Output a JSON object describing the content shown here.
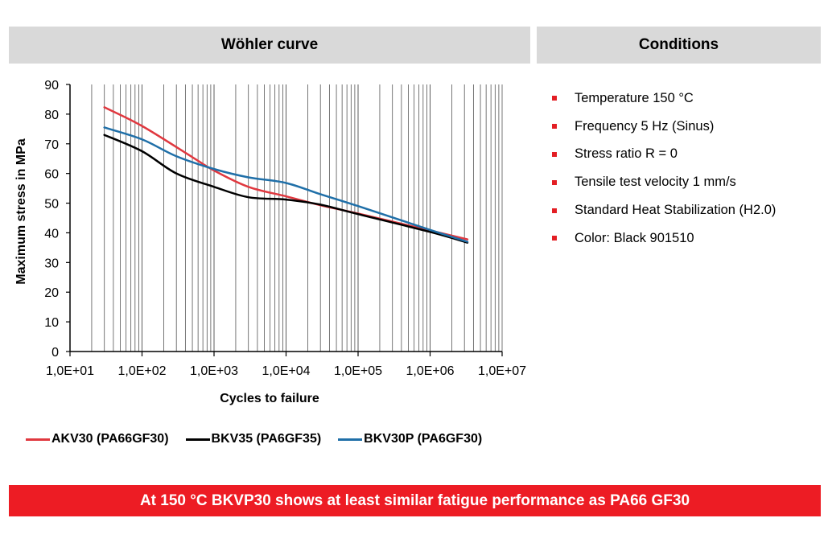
{
  "header": {
    "chart_title": "Wöhler curve",
    "conditions_title": "Conditions"
  },
  "conditions": [
    "Temperature 150 °C",
    "Frequency 5 Hz (Sinus)",
    "Stress ratio R = 0",
    "Tensile test velocity 1 mm/s",
    "Standard Heat Stabilization (H2.0)",
    "Color: Black 901510"
  ],
  "banner": "At 150 °C BKVP30 shows at least similar fatigue performance as PA66 GF30",
  "colors": {
    "accent": "#ed1c24",
    "header_bg": "#d9d9d9"
  },
  "chart_data": {
    "type": "line",
    "xscale": "log",
    "xlabel": "Cycles to failure",
    "ylabel": "Maximum stress in MPa",
    "xlim": [
      10,
      10000000
    ],
    "ylim": [
      0,
      90
    ],
    "yticks": [
      0,
      10,
      20,
      30,
      40,
      50,
      60,
      70,
      80,
      90
    ],
    "xtick_labels": [
      "1,0E+01",
      "1,0E+02",
      "1,0E+03",
      "1,0E+04",
      "1,0E+05",
      "1,0E+06",
      "1,0E+07"
    ],
    "grid": "vertical minor log gridlines",
    "legend_position": "bottom",
    "series": [
      {
        "name": "AKV30 (PA66GF30)",
        "color": "#e0383f",
        "x": [
          30,
          100,
          500,
          1000,
          3000,
          10000,
          30000,
          100000,
          1000000,
          3300000
        ],
        "y": [
          82.3,
          76,
          65.5,
          61,
          55.5,
          52.3,
          49.3,
          46.5,
          40.8,
          37.8
        ]
      },
      {
        "name": "BKV35 (PA6GF35)",
        "color": "#000000",
        "x": [
          30,
          100,
          300,
          1000,
          3000,
          10000,
          30000,
          100000,
          1000000,
          3300000
        ],
        "y": [
          73,
          67.5,
          60,
          55.5,
          52,
          51.2,
          49.5,
          46.3,
          40.3,
          36.7
        ]
      },
      {
        "name": "BKV30P (PA6GF30)",
        "color": "#1f6fa8",
        "x": [
          30,
          100,
          300,
          1000,
          3000,
          10000,
          30000,
          100000,
          1000000,
          3300000
        ],
        "y": [
          75.5,
          71.5,
          65.8,
          61.5,
          58.7,
          56.8,
          53,
          49,
          41,
          37
        ]
      }
    ]
  }
}
